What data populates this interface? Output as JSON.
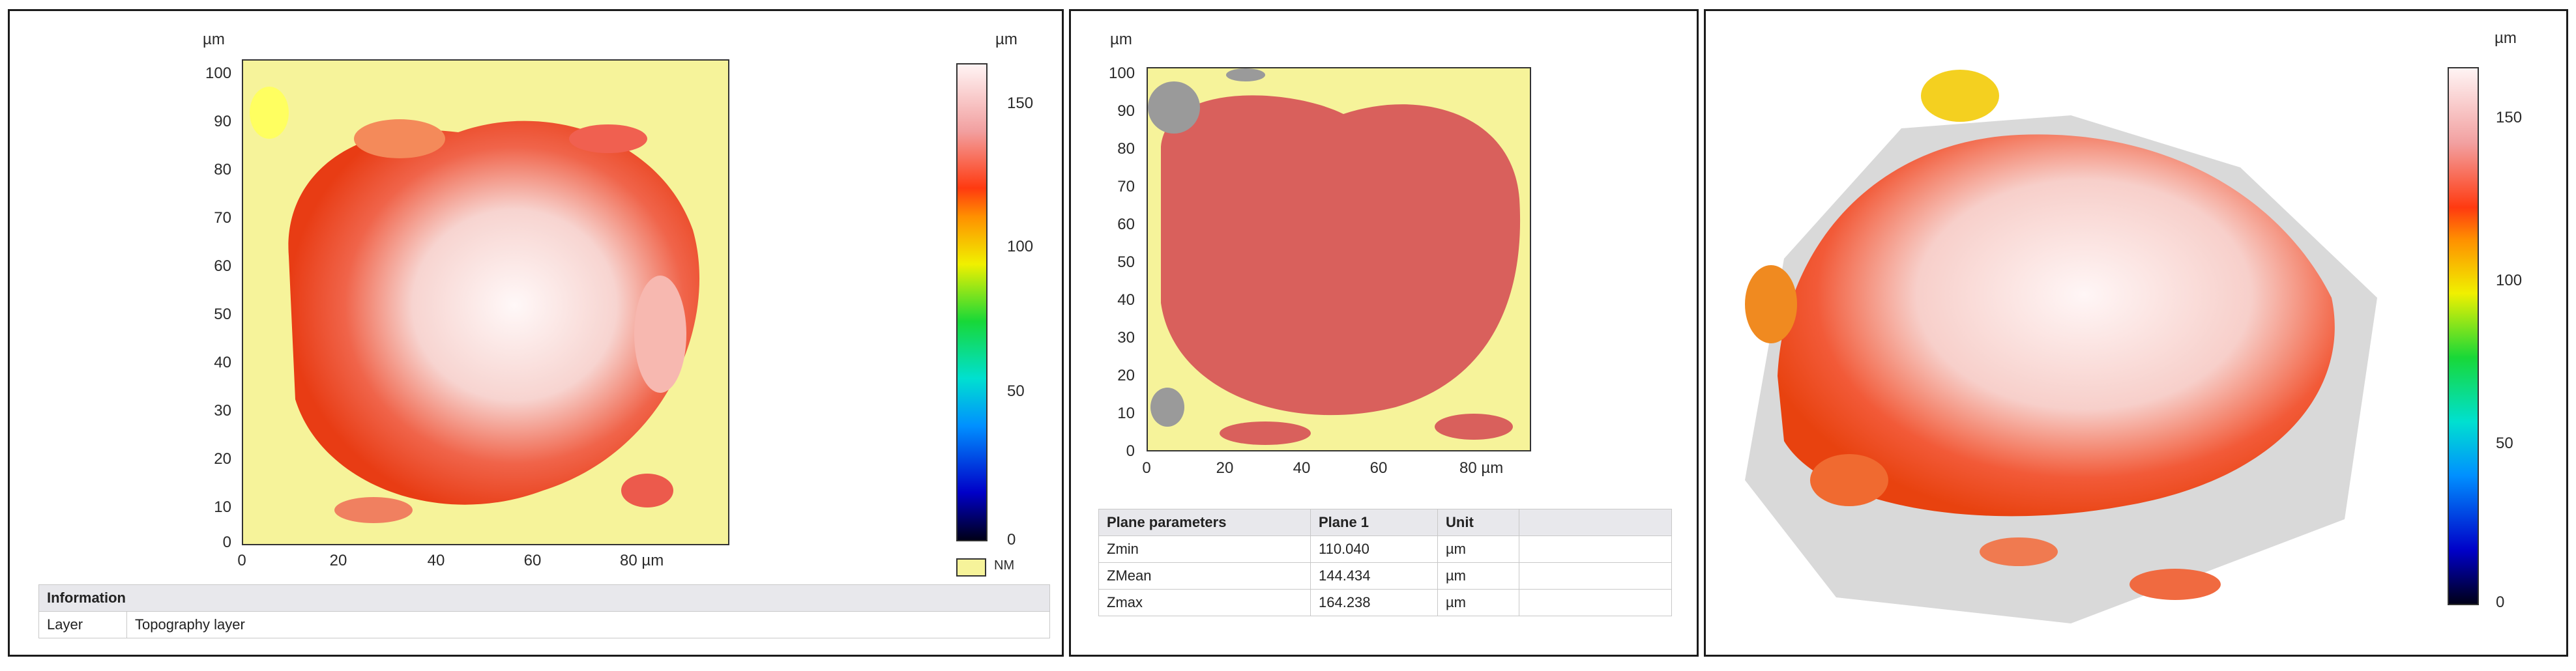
{
  "unit": "µm",
  "nm_label": "NM",
  "panel1": {
    "y_ticks": [
      "100",
      "90",
      "80",
      "70",
      "60",
      "50",
      "40",
      "30",
      "20",
      "10",
      "0"
    ],
    "x_ticks": [
      "0",
      "20",
      "40",
      "60",
      "80 µm"
    ],
    "colorbar_ticks": [
      "150",
      "100",
      "50",
      "0"
    ],
    "info": {
      "title": "Information",
      "key": "Layer",
      "value": "Topography layer"
    }
  },
  "panel2": {
    "y_ticks": [
      "100",
      "90",
      "80",
      "70",
      "60",
      "50",
      "40",
      "30",
      "20",
      "10",
      "0"
    ],
    "x_ticks": [
      "0",
      "20",
      "40",
      "60",
      "80 µm"
    ],
    "table": {
      "headers": [
        "Plane parameters",
        "Plane 1",
        "Unit"
      ],
      "rows": [
        [
          "Zmin",
          "110.040",
          "µm"
        ],
        [
          "ZMean",
          "144.434",
          "µm"
        ],
        [
          "Zmax",
          "164.238",
          "µm"
        ]
      ]
    }
  },
  "panel3": {
    "colorbar_ticks": [
      "150",
      "100",
      "50",
      "0"
    ]
  },
  "colors": {
    "surface_low": "#f6f39a",
    "surface_mid": "#ff4a1e",
    "surface_high": "#fff6f6",
    "plane_fill": "#d9605c",
    "missing": "#9a9a9a"
  }
}
